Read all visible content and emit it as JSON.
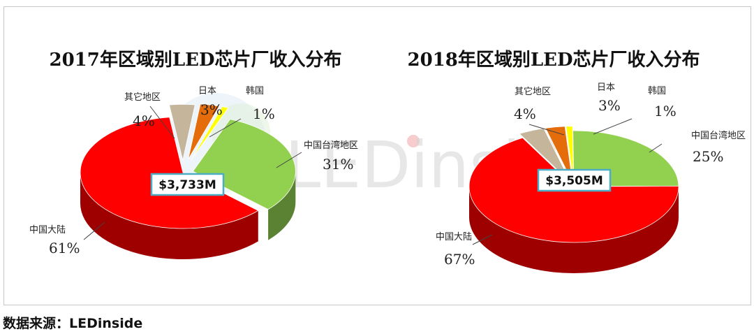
{
  "source_text": "数据来源：LEDinside",
  "watermark": {
    "text": "LEDinside"
  },
  "colors": {
    "中国大陆": "#ff0000",
    "中国台湾地区": "#92d050",
    "韩国": "#ffff00",
    "日本": "#e46c0a",
    "其它地区": "#c4b59b",
    "total_box_border": "#4bacc6"
  },
  "chart_data": [
    {
      "type": "pie",
      "title": "2017年区域别LED芯片厂收入分布",
      "total": "$3,733M",
      "slices": [
        {
          "label": "中国台湾地区",
          "pct": "31%",
          "value": 31
        },
        {
          "label": "中国大陆",
          "pct": "61%",
          "value": 61
        },
        {
          "label": "其它地区",
          "pct": "4%",
          "value": 4
        },
        {
          "label": "日本",
          "pct": "3%",
          "value": 3
        },
        {
          "label": "韩国",
          "pct": "1%",
          "value": 1
        }
      ]
    },
    {
      "type": "pie",
      "title": "2018年区域别LED芯片厂收入分布",
      "total": "$3,505M",
      "slices": [
        {
          "label": "中国台湾地区",
          "pct": "25%",
          "value": 25
        },
        {
          "label": "中国大陆",
          "pct": "67%",
          "value": 67
        },
        {
          "label": "其它地区",
          "pct": "4%",
          "value": 4
        },
        {
          "label": "日本",
          "pct": "3%",
          "value": 3
        },
        {
          "label": "韩国",
          "pct": "1%",
          "value": 1
        }
      ]
    }
  ]
}
